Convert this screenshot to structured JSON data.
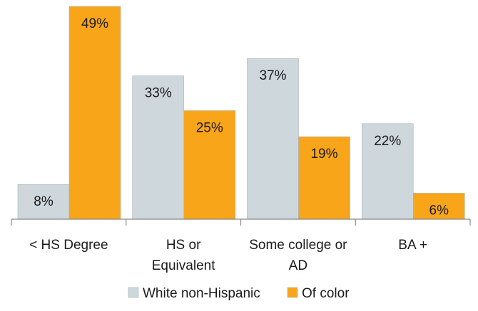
{
  "chart_data": {
    "type": "bar",
    "categories": [
      [
        "< HS Degree"
      ],
      [
        "HS or",
        "Equivalent"
      ],
      [
        "Some college or",
        "AD"
      ],
      [
        "BA +"
      ]
    ],
    "series": [
      {
        "name": "White non-Hispanic",
        "color": "#cdd7dc",
        "values": [
          8,
          33,
          37,
          22
        ],
        "labels": [
          "8%",
          "33%",
          "37%",
          "22%"
        ]
      },
      {
        "name": "Of color",
        "color": "#f9a51a",
        "values": [
          49,
          25,
          19,
          6
        ],
        "labels": [
          "49%",
          "25%",
          "19%",
          "6%"
        ]
      }
    ],
    "ylim": [
      0,
      49
    ],
    "grid": false,
    "legend": "bottom",
    "xlabel": "",
    "ylabel": ""
  }
}
